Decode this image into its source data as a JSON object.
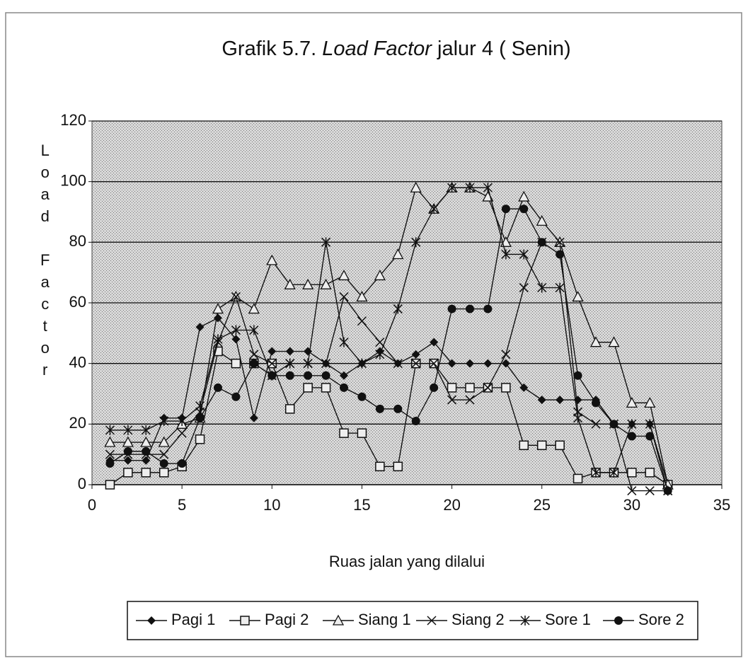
{
  "chart_data": {
    "type": "line",
    "title": [
      "Grafik 5.7. ",
      "Load Factor",
      " jalur 4 ( Senin)"
    ],
    "xlabel": "Ruas jalan yang dilalui",
    "ylabel": "Load Factor",
    "x": [
      1,
      2,
      3,
      4,
      5,
      6,
      7,
      8,
      9,
      10,
      11,
      12,
      13,
      14,
      15,
      16,
      17,
      18,
      19,
      20,
      21,
      22,
      23,
      24,
      25,
      26,
      27,
      28,
      29,
      30,
      31,
      32
    ],
    "xlim": [
      0,
      35
    ],
    "xticks": [
      0,
      5,
      10,
      15,
      20,
      25,
      30,
      35
    ],
    "ylim": [
      0,
      120
    ],
    "yticks": [
      0,
      20,
      40,
      60,
      80,
      100,
      120
    ],
    "grid": true,
    "legend": "bottom",
    "series": [
      {
        "name": "Pagi 1",
        "color": "#111",
        "marker": "diamond",
        "values": [
          8,
          8,
          8,
          22,
          22,
          52,
          55,
          48,
          22,
          44,
          44,
          44,
          40,
          36,
          40,
          44,
          40,
          43,
          47,
          40,
          40,
          40,
          40,
          32,
          28,
          28,
          28,
          28,
          20,
          20,
          20,
          0
        ]
      },
      {
        "name": "Pagi 2",
        "color": "#111",
        "marker": "square",
        "values": [
          0,
          4,
          4,
          4,
          6,
          15,
          44,
          40,
          40,
          40,
          25,
          32,
          32,
          17,
          17,
          6,
          6,
          40,
          40,
          32,
          32,
          32,
          32,
          13,
          13,
          13,
          2,
          4,
          4,
          4,
          4,
          0
        ]
      },
      {
        "name": "Siang 1",
        "color": "#111",
        "marker": "triangle",
        "values": [
          14,
          14,
          14,
          14,
          20,
          22,
          58,
          62,
          58,
          74,
          66,
          66,
          66,
          69,
          62,
          69,
          76,
          98,
          91,
          98,
          98,
          95,
          80,
          95,
          87,
          80,
          62,
          47,
          47,
          27,
          27,
          0
        ]
      },
      {
        "name": "Siang 2",
        "color": "#111",
        "marker": "x",
        "values": [
          10,
          10,
          10,
          10,
          17,
          24,
          47,
          62,
          43,
          40,
          40,
          40,
          40,
          62,
          54,
          47,
          40,
          40,
          40,
          28,
          28,
          32,
          43,
          65,
          80,
          80,
          24,
          20,
          20,
          -2,
          -2,
          -2
        ]
      },
      {
        "name": "Sore 1",
        "color": "#111",
        "marker": "star",
        "values": [
          18,
          18,
          18,
          21,
          21,
          26,
          48,
          51,
          51,
          36,
          40,
          40,
          80,
          47,
          40,
          43,
          58,
          80,
          91,
          98,
          98,
          98,
          76,
          76,
          65,
          65,
          22,
          4,
          4,
          20,
          20,
          -2
        ]
      },
      {
        "name": "Sore 2",
        "color": "#111",
        "marker": "circle",
        "values": [
          7,
          11,
          11,
          7,
          7,
          22,
          32,
          29,
          40,
          36,
          36,
          36,
          36,
          32,
          29,
          25,
          25,
          21,
          32,
          58,
          58,
          58,
          91,
          91,
          80,
          76,
          36,
          27,
          20,
          16,
          16,
          -2
        ]
      }
    ]
  }
}
